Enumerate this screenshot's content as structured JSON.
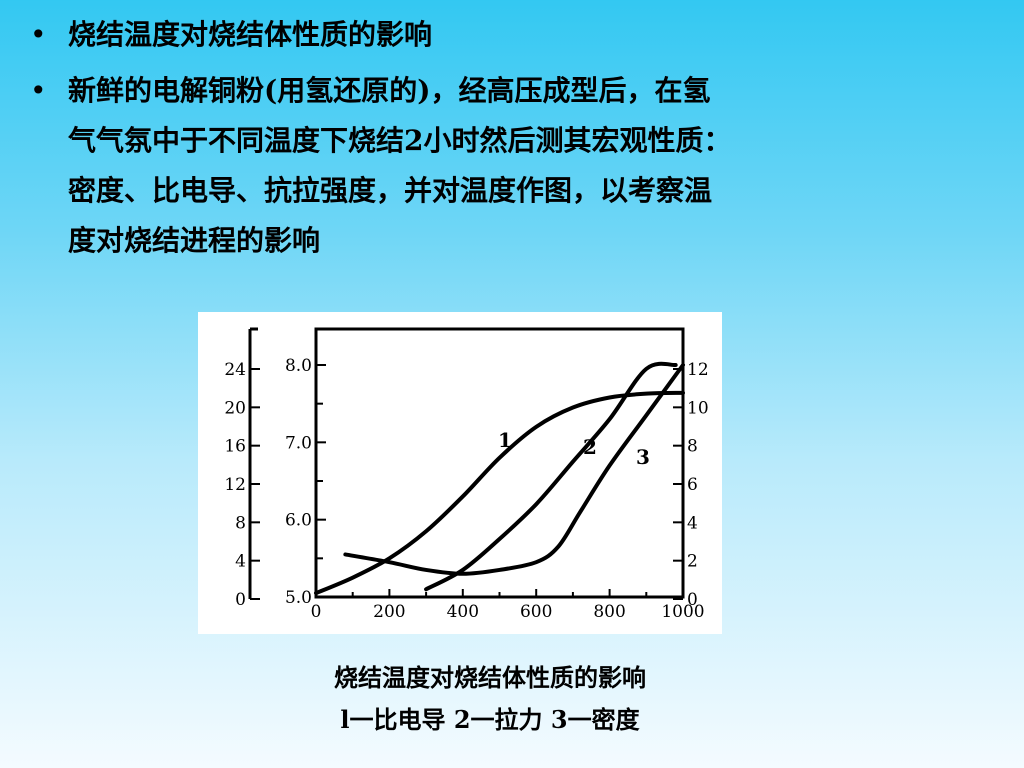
{
  "bullets": [
    {
      "text": "烧结温度对烧结体性质的影响"
    },
    {
      "text": "新鲜的电解铜粉(用氢还原的)，经高压成型后，在氢\n气气氛中于不同温度下烧结2小时然后测其宏观性质：\n密度、比电导、抗拉强度，并对温度作图，以考察温\n度对烧结进程的影响"
    }
  ],
  "bullet_symbol": "•",
  "caption": {
    "line1": "烧结温度对烧结体性质的影响",
    "line2": "l一比电导  2一拉力  3一密度"
  },
  "chart_data": {
    "type": "line",
    "x_ticks": [
      "0",
      "200",
      "400",
      "600",
      "800",
      "1000"
    ],
    "xlim": [
      0,
      1000
    ],
    "left_outer_axis": {
      "ticks": [
        "0",
        "4",
        "8",
        "12",
        "16",
        "20",
        "24"
      ],
      "range": [
        0,
        24
      ]
    },
    "left_inner_axis": {
      "ticks": [
        "5.0",
        "6.0",
        "7.0",
        "8.0"
      ],
      "range": [
        5.0,
        8.0
      ]
    },
    "right_axis": {
      "ticks": [
        "0",
        "2",
        "4",
        "6",
        "8",
        "10",
        "12"
      ],
      "range": [
        0,
        12
      ]
    },
    "series": [
      {
        "name": "1",
        "points": [
          [
            0,
            5.05
          ],
          [
            100,
            5.25
          ],
          [
            200,
            5.5
          ],
          [
            300,
            5.85
          ],
          [
            400,
            6.3
          ],
          [
            500,
            6.8
          ],
          [
            600,
            7.2
          ],
          [
            700,
            7.45
          ],
          [
            800,
            7.58
          ],
          [
            900,
            7.63
          ],
          [
            1000,
            7.64
          ]
        ]
      },
      {
        "name": "2",
        "points": [
          [
            300,
            5.1
          ],
          [
            400,
            5.35
          ],
          [
            500,
            5.75
          ],
          [
            600,
            6.2
          ],
          [
            700,
            6.75
          ],
          [
            800,
            7.3
          ],
          [
            900,
            7.95
          ],
          [
            980,
            8.0
          ]
        ]
      },
      {
        "name": "3",
        "points": [
          [
            80,
            5.55
          ],
          [
            200,
            5.45
          ],
          [
            300,
            5.35
          ],
          [
            400,
            5.3
          ],
          [
            500,
            5.35
          ],
          [
            600,
            5.45
          ],
          [
            660,
            5.65
          ],
          [
            720,
            6.1
          ],
          [
            800,
            6.7
          ],
          [
            900,
            7.35
          ],
          [
            1000,
            8.0
          ]
        ]
      }
    ],
    "grid": false
  }
}
